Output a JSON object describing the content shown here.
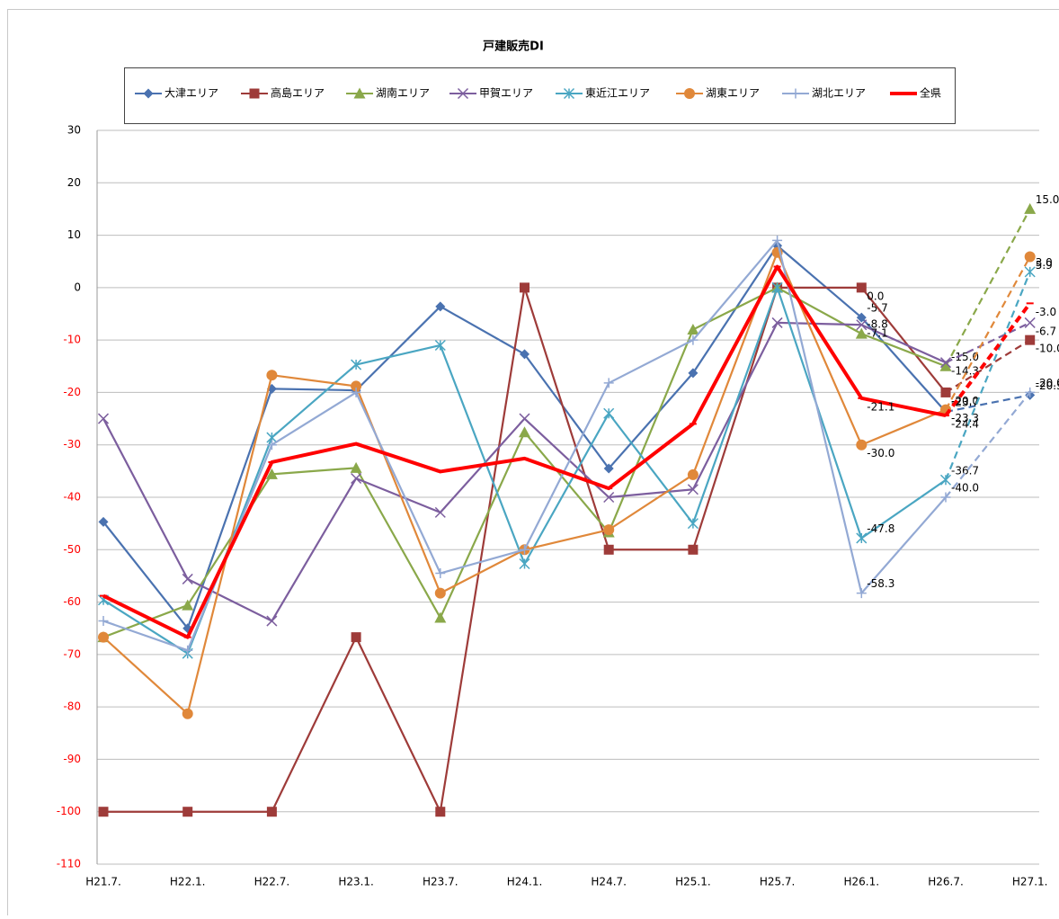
{
  "chart_data": {
    "type": "line",
    "title": "戸建販売DI",
    "categories": [
      "H21.7.",
      "H22.1.",
      "H22.7.",
      "H23.1.",
      "H23.7.",
      "H24.1.",
      "H24.7.",
      "H25.1.",
      "H25.7.",
      "H26.1.",
      "H26.7.",
      "H27.1."
    ],
    "ylim": [
      -110,
      30
    ],
    "yticks": [
      30,
      20,
      10,
      0,
      -10,
      -20,
      -30,
      -40,
      -50,
      -60,
      -70,
      -80,
      -90,
      -100,
      -110
    ],
    "grid": true,
    "negative_tick_color": "#ff0000",
    "dash_from": 10,
    "legend": "top",
    "series": [
      {
        "name": "大津エリア",
        "color": "#4a72b0",
        "marker": "diamond",
        "values": [
          -44.7,
          -65,
          -19.3,
          -19.6,
          -3.6,
          -12.7,
          -34.5,
          -16.3,
          8,
          -5.7,
          -23.7,
          -20.5
        ],
        "value_labels": [
          null,
          null,
          null,
          null,
          null,
          null,
          null,
          null,
          null,
          "-5.7",
          "-23.7",
          "-20.5"
        ]
      },
      {
        "name": "高島エリア",
        "color": "#9e3b39",
        "marker": "square",
        "values": [
          -100,
          -100,
          -100,
          -66.7,
          -100,
          0,
          -50,
          -50,
          0,
          0,
          -20,
          -10
        ],
        "value_labels": [
          null,
          null,
          null,
          null,
          null,
          null,
          null,
          null,
          null,
          "0.0",
          "-20.0",
          "-10.0"
        ]
      },
      {
        "name": "湖南エリア",
        "color": "#8aa84a",
        "marker": "triangle",
        "values": [
          -66.7,
          -60.6,
          -35.6,
          -34.4,
          -63,
          -27.6,
          -46.7,
          -8,
          0,
          -8.8,
          -15,
          15
        ],
        "value_labels": [
          null,
          null,
          null,
          null,
          null,
          null,
          null,
          null,
          null,
          "-8.8",
          "-15.0",
          "15.0"
        ]
      },
      {
        "name": "甲賀エリア",
        "color": "#7c5e9e",
        "marker": "x",
        "values": [
          -25,
          -55.6,
          -63.6,
          -36.4,
          -42.9,
          -25,
          -40,
          -38.5,
          -6.7,
          -7.1,
          -14.3,
          -6.7
        ],
        "value_labels": [
          null,
          null,
          null,
          null,
          null,
          null,
          null,
          null,
          null,
          "-7.1",
          "-14.3",
          "-6.7"
        ]
      },
      {
        "name": "東近江エリア",
        "color": "#4aa6c2",
        "marker": "star",
        "values": [
          -59.6,
          -69.8,
          -28.6,
          -14.7,
          -11,
          -52.7,
          -24,
          -45,
          0,
          -47.8,
          -36.7,
          3
        ],
        "value_labels": [
          null,
          null,
          null,
          null,
          null,
          null,
          null,
          null,
          null,
          "-47.8",
          "-36.7",
          "3.0"
        ]
      },
      {
        "name": "湖東エリア",
        "color": "#e0883a",
        "marker": "circle",
        "values": [
          -66.7,
          -81.3,
          -16.7,
          -18.8,
          -58.3,
          -50,
          -46.2,
          -35.7,
          6.7,
          -30,
          -23.3,
          5.9
        ],
        "value_labels": [
          null,
          null,
          null,
          null,
          null,
          null,
          null,
          null,
          null,
          "-30.0",
          "-23.3",
          "5.9"
        ]
      },
      {
        "name": "湖北エリア",
        "color": "#93a9d4",
        "marker": "plus",
        "values": [
          -63.6,
          -69.2,
          -30,
          -20,
          -54.5,
          -50,
          -18.2,
          -10,
          9,
          -58.3,
          -40,
          -20
        ],
        "value_labels": [
          null,
          null,
          null,
          null,
          null,
          null,
          null,
          null,
          null,
          "-58.3",
          "-40.0",
          "-20.0"
        ]
      },
      {
        "name": "全県",
        "color": "#ff0000",
        "marker": "none",
        "width": 4,
        "values": [
          -58.8,
          -66.7,
          -33.3,
          -29.8,
          -35.1,
          -32.6,
          -38.3,
          -26,
          4,
          -21.1,
          -24.4,
          -3
        ],
        "value_labels": [
          null,
          null,
          null,
          null,
          null,
          null,
          null,
          null,
          null,
          "-21.1",
          "-24.4",
          "-3.0"
        ]
      }
    ]
  }
}
